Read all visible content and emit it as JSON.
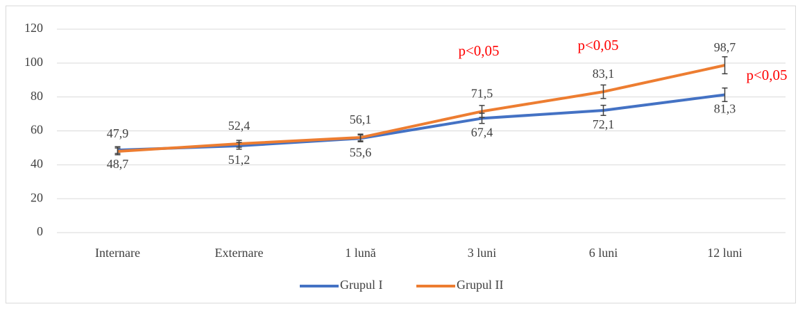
{
  "chart_data": {
    "type": "line",
    "categories": [
      "Internare",
      "Externare",
      "1 lună",
      "3 luni",
      "6 luni",
      "12 luni"
    ],
    "series": [
      {
        "name": "Grupul I",
        "color": "#4472c4",
        "values": [
          48.7,
          51.2,
          55.6,
          67.4,
          72.1,
          81.3
        ],
        "value_labels": [
          "48,7",
          "51,2",
          "55,6",
          "67,4",
          "72,1",
          "81,3"
        ],
        "errors": [
          2,
          2,
          2,
          3,
          3,
          4
        ]
      },
      {
        "name": "Grupul II",
        "color": "#ed7d31",
        "values": [
          47.9,
          52.4,
          56.1,
          71.5,
          83.1,
          98.7
        ],
        "value_labels": [
          "47,9",
          "52,4",
          "56,1",
          "71,5",
          "83,1",
          "98,7"
        ],
        "errors": [
          2,
          2,
          2,
          3.5,
          4,
          5
        ]
      }
    ],
    "annotations": [
      "p<0,05",
      "p<0,05",
      "p<0,05"
    ],
    "annotation_color": "#ff0000",
    "error_color": "#404040",
    "ylim": [
      0,
      120
    ],
    "yticks": [
      0,
      20,
      40,
      60,
      80,
      100,
      120
    ],
    "grid": true,
    "legend": "bottom"
  }
}
